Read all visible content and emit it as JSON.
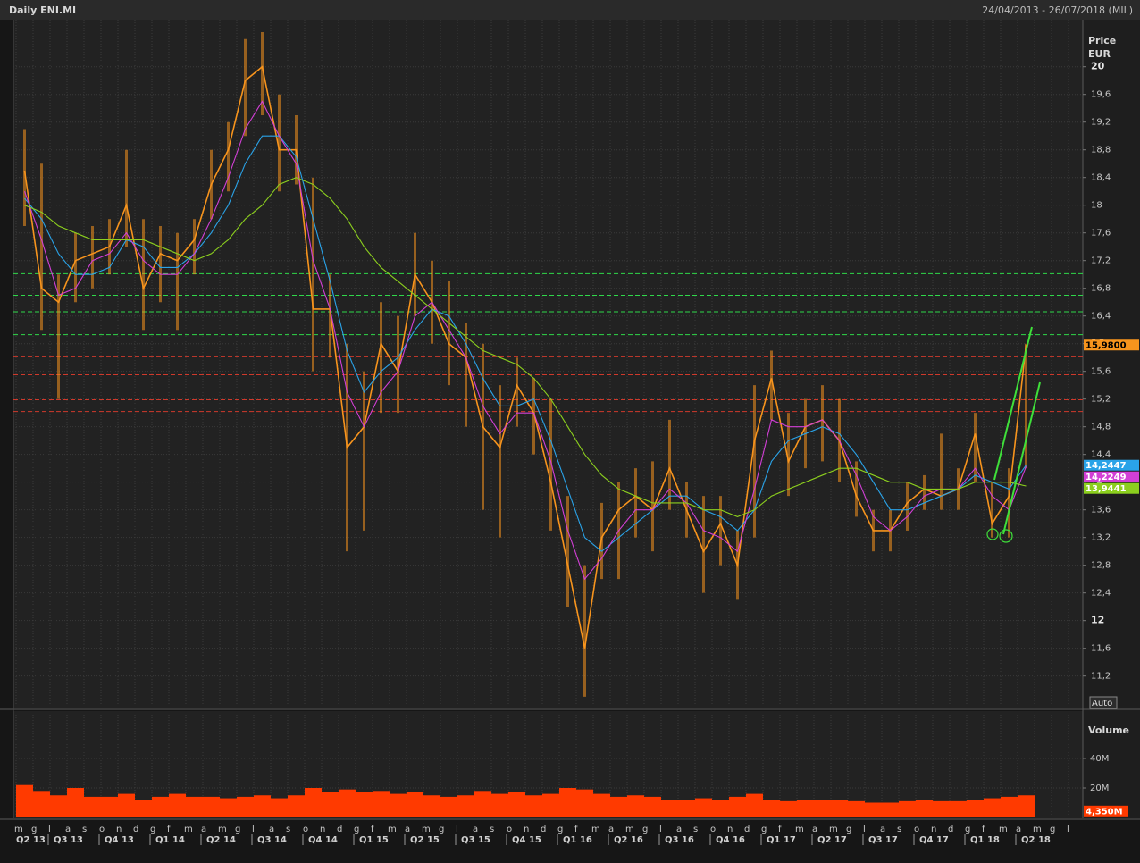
{
  "header": {
    "title": "Daily ENI.MI",
    "range": "24/04/2013 - 26/07/2018 (MIL)"
  },
  "chart_data": [
    {
      "type": "line",
      "y_label_lines": [
        "Price",
        "EUR"
      ],
      "button": "Auto",
      "ylim": [
        10.77,
        20.68
      ],
      "yticks": [
        {
          "value": 11.2,
          "label": "11,2"
        },
        {
          "value": 11.6,
          "label": "11,6"
        },
        12,
        {
          "value": 12.4,
          "label": "12,4"
        },
        {
          "value": 12.8,
          "label": "12,8"
        },
        {
          "value": 13.2,
          "label": "13,2"
        },
        {
          "value": 13.6,
          "label": "13,6"
        },
        14,
        {
          "value": 14.4,
          "label": "14,4"
        },
        {
          "value": 14.8,
          "label": "14,8"
        },
        {
          "value": 15.2,
          "label": "15,2"
        },
        {
          "value": 15.6,
          "label": "15,6"
        },
        16,
        {
          "value": 16.4,
          "label": "16,4"
        },
        {
          "value": 16.8,
          "label": "16,8"
        },
        {
          "value": 17.2,
          "label": "17,2"
        },
        {
          "value": 17.6,
          "label": "17,6"
        },
        18,
        {
          "value": 18.4,
          "label": "18,4"
        },
        {
          "value": 18.8,
          "label": "18,8"
        },
        {
          "value": 19.2,
          "label": "19,2"
        },
        {
          "value": 19.6,
          "label": "19,6"
        },
        20
      ],
      "grid": true,
      "levels": [
        {
          "value": 17.01,
          "color": "#2fd84a"
        },
        {
          "value": 16.7,
          "color": "#2fd84a"
        },
        {
          "value": 16.46,
          "color": "#2fd84a"
        },
        {
          "value": 16.13,
          "color": "#2fd84a"
        },
        {
          "value": 15.81,
          "color": "#d0392b"
        },
        {
          "value": 15.55,
          "color": "#d0392b"
        },
        {
          "value": 15.19,
          "color": "#d0392b"
        },
        {
          "value": 15.02,
          "color": "#d0392b"
        }
      ],
      "series": [
        {
          "color": "#f7941d",
          "last_label": "15,9800",
          "label_text": "#000000",
          "values": [
            18.5,
            16.8,
            16.6,
            17.2,
            17.3,
            17.4,
            18.0,
            16.8,
            17.3,
            17.2,
            17.5,
            18.3,
            18.8,
            19.8,
            20.0,
            18.8,
            18.8,
            16.5,
            16.5,
            14.5,
            14.8,
            16.0,
            15.6,
            17.0,
            16.6,
            16.0,
            15.8,
            14.8,
            14.5,
            15.4,
            15.0,
            14.0,
            12.8,
            11.6,
            13.2,
            13.6,
            13.8,
            13.6,
            14.2,
            13.6,
            13.0,
            13.4,
            12.8,
            14.6,
            15.5,
            14.3,
            14.8,
            14.9,
            14.6,
            13.8,
            13.3,
            13.3,
            13.7,
            13.9,
            13.8,
            13.9,
            14.7,
            13.4,
            13.8,
            15.98,
            null,
            null,
            null
          ],
          "high": [
            19.1,
            18.6,
            17.0,
            17.6,
            17.7,
            17.8,
            18.8,
            17.8,
            17.7,
            17.6,
            17.8,
            18.8,
            19.2,
            20.4,
            20.5,
            19.6,
            19.3,
            18.4,
            17.0,
            16.0,
            15.6,
            16.6,
            16.4,
            17.6,
            17.2,
            16.9,
            16.3,
            16.0,
            15.4,
            15.8,
            15.5,
            15.2,
            13.8,
            12.8,
            13.7,
            14.0,
            14.2,
            14.3,
            14.9,
            14.0,
            13.8,
            13.8,
            13.3,
            15.4,
            15.9,
            15.0,
            15.2,
            15.4,
            15.2,
            14.3,
            13.6,
            13.6,
            14.0,
            14.1,
            14.7,
            14.2,
            15.0,
            14.0,
            14.2,
            16.0,
            null,
            null,
            null
          ],
          "low": [
            17.7,
            16.2,
            15.2,
            16.6,
            16.8,
            17.0,
            17.4,
            16.2,
            16.6,
            16.2,
            17.0,
            17.8,
            18.2,
            19.0,
            19.3,
            18.2,
            18.3,
            15.6,
            15.8,
            13.0,
            13.3,
            15.0,
            15.0,
            16.4,
            16.0,
            15.4,
            14.8,
            13.6,
            13.2,
            14.8,
            14.4,
            13.3,
            12.2,
            10.9,
            12.6,
            12.6,
            13.2,
            13.0,
            13.6,
            13.2,
            12.4,
            12.8,
            12.3,
            13.2,
            14.9,
            13.8,
            14.2,
            14.3,
            14.0,
            13.5,
            13.0,
            13.0,
            13.3,
            13.6,
            13.6,
            13.6,
            14.0,
            13.2,
            13.2,
            14.2,
            null,
            null,
            null
          ]
        },
        {
          "color": "#2aa3e8",
          "last_label": "14,2447",
          "label_text": "#ffffff",
          "values": [
            18.1,
            17.8,
            17.3,
            17.0,
            17.0,
            17.1,
            17.5,
            17.4,
            17.1,
            17.1,
            17.3,
            17.6,
            18.0,
            18.6,
            19.0,
            19.0,
            18.7,
            17.8,
            16.9,
            15.9,
            15.3,
            15.6,
            15.8,
            16.2,
            16.5,
            16.4,
            16.0,
            15.5,
            15.1,
            15.1,
            15.2,
            14.6,
            13.9,
            13.2,
            13.0,
            13.2,
            13.4,
            13.6,
            13.8,
            13.8,
            13.6,
            13.5,
            13.3,
            13.6,
            14.3,
            14.6,
            14.7,
            14.8,
            14.7,
            14.4,
            14.0,
            13.6,
            13.6,
            13.7,
            13.8,
            13.9,
            14.1,
            14.0,
            13.9,
            14.2447,
            null,
            null,
            null
          ]
        },
        {
          "color": "#d23fd6",
          "last_label": "14,2249",
          "label_text": "#ffffff",
          "values": [
            18.2,
            17.5,
            16.7,
            16.8,
            17.2,
            17.3,
            17.6,
            17.2,
            17.0,
            17.0,
            17.3,
            17.8,
            18.4,
            19.1,
            19.5,
            19.0,
            18.6,
            17.2,
            16.5,
            15.3,
            14.8,
            15.3,
            15.6,
            16.4,
            16.6,
            16.2,
            15.8,
            15.1,
            14.7,
            15.0,
            15.0,
            14.3,
            13.3,
            12.6,
            12.9,
            13.3,
            13.6,
            13.6,
            13.9,
            13.7,
            13.3,
            13.2,
            13.0,
            13.9,
            14.9,
            14.8,
            14.8,
            14.9,
            14.6,
            14.1,
            13.5,
            13.3,
            13.5,
            13.8,
            13.9,
            13.9,
            14.2,
            13.8,
            13.6,
            14.2249,
            null,
            null,
            null
          ]
        },
        {
          "color": "#8ccf1e",
          "last_label": "13,9441",
          "label_text": "#ffffff",
          "values": [
            18.0,
            17.9,
            17.7,
            17.6,
            17.5,
            17.5,
            17.5,
            17.5,
            17.4,
            17.3,
            17.2,
            17.3,
            17.5,
            17.8,
            18.0,
            18.3,
            18.4,
            18.3,
            18.1,
            17.8,
            17.4,
            17.1,
            16.9,
            16.7,
            16.5,
            16.3,
            16.1,
            15.9,
            15.8,
            15.7,
            15.5,
            15.2,
            14.8,
            14.4,
            14.1,
            13.9,
            13.8,
            13.7,
            13.7,
            13.7,
            13.6,
            13.6,
            13.5,
            13.6,
            13.8,
            13.9,
            14.0,
            14.1,
            14.2,
            14.2,
            14.1,
            14.0,
            14.0,
            13.9,
            13.9,
            13.9,
            14.0,
            14.0,
            14.0,
            13.9441,
            null,
            null,
            null
          ]
        }
      ]
    },
    {
      "type": "bar",
      "y_label": "Volume",
      "color": "#ff3a00",
      "ylim": [
        0,
        69700000
      ],
      "yticks": [
        {
          "value": 20000000,
          "label": "20M"
        },
        {
          "value": 40000000,
          "label": "40M"
        }
      ],
      "categories": [
        "m",
        "g",
        "l",
        "a",
        "s",
        "o",
        "n",
        "d",
        "g",
        "f",
        "m",
        "a",
        "m",
        "g",
        "l",
        "a",
        "s",
        "o",
        "n",
        "d",
        "g",
        "f",
        "m",
        "a",
        "m",
        "g",
        "l",
        "a",
        "s",
        "o",
        "n",
        "d",
        "g",
        "f",
        "m",
        "a",
        "m",
        "g",
        "l",
        "a",
        "s",
        "o",
        "n",
        "d",
        "g",
        "f",
        "m",
        "a",
        "m",
        "g",
        "l",
        "a",
        "s",
        "o",
        "n",
        "d",
        "g",
        "f",
        "m",
        "a",
        "m",
        "g",
        "l"
      ],
      "quarters": [
        "Q2 13",
        "Q3 13",
        "Q4 13",
        "Q1 14",
        "Q2 14",
        "Q3 14",
        "Q4 14",
        "Q1 15",
        "Q2 15",
        "Q3 15",
        "Q4 15",
        "Q1 16",
        "Q2 16",
        "Q3 16",
        "Q4 16",
        "Q1 17",
        "Q2 17",
        "Q3 17",
        "Q4 17",
        "Q1 18",
        "Q2 18"
      ],
      "values": [
        22000000,
        18000000,
        15000000,
        20000000,
        14000000,
        14000000,
        16000000,
        12000000,
        14000000,
        16000000,
        14000000,
        14000000,
        13000000,
        14000000,
        15000000,
        13000000,
        15000000,
        20000000,
        17000000,
        19000000,
        17000000,
        18000000,
        16000000,
        17000000,
        15000000,
        14000000,
        15000000,
        18000000,
        16000000,
        17000000,
        15000000,
        16000000,
        20000000,
        19000000,
        16000000,
        14000000,
        15000000,
        14000000,
        12000000,
        12000000,
        13000000,
        12000000,
        14000000,
        16000000,
        12000000,
        11000000,
        12000000,
        12000000,
        12000000,
        11000000,
        10000000,
        10000000,
        11000000,
        12000000,
        11000000,
        11000000,
        12000000,
        13000000,
        14000000,
        15000000,
        null,
        null,
        null
      ],
      "last": {
        "value": 4350000,
        "label": "4,350M"
      }
    }
  ]
}
